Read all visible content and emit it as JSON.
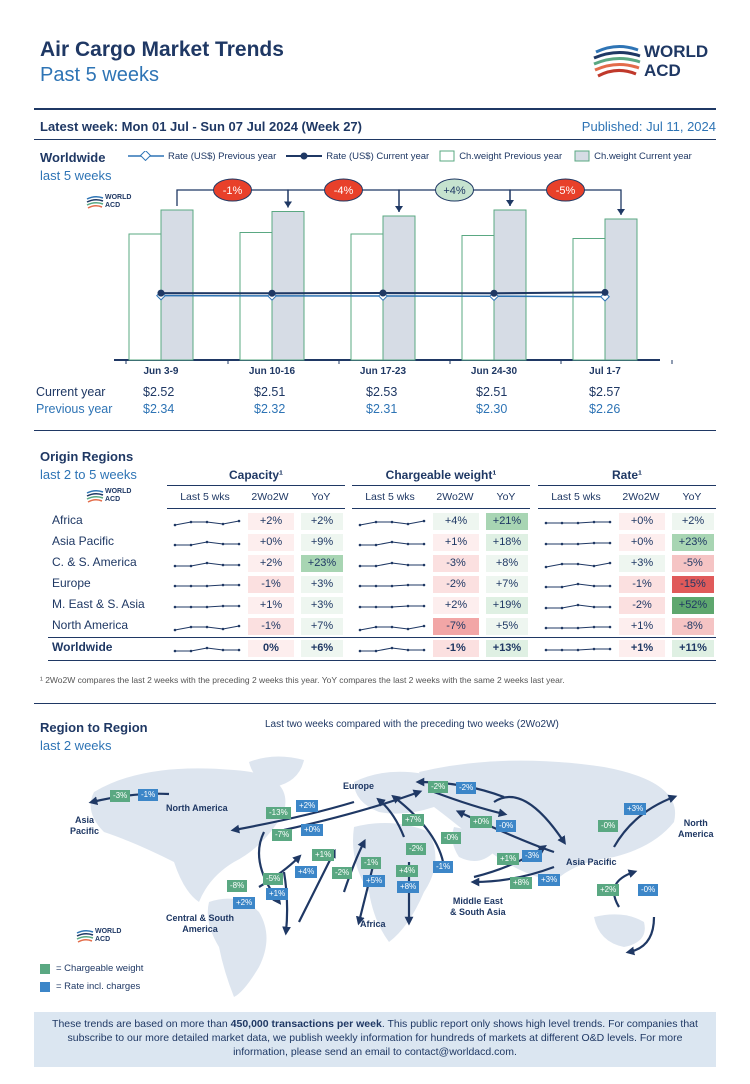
{
  "header": {
    "title": "Air Cargo Market Trends",
    "subtitle": "Past 5 weeks",
    "logo_line1": "WORLD",
    "logo_line2": "ACD",
    "latest_week": "Latest week:  Mon 01 Jul - Sun 07 Jul 2024 (Week 27)",
    "published": "Published: Jul 11, 2024"
  },
  "worldwide": {
    "title": "Worldwide",
    "sub": "last 5 weeks",
    "legend": [
      "Rate (US$) Previous year",
      "Rate (US$) Current year",
      "Ch.weight Previous year",
      "Ch.weight Current year"
    ],
    "changes": [
      "-1%",
      "-4%",
      "+4%",
      "-5%"
    ],
    "row_current_label": "Current year",
    "row_previous_label": "Previous year"
  },
  "chart_data": {
    "type": "bar",
    "categories": [
      "Jun 3-9",
      "Jun 10-16",
      "Jun 17-23",
      "Jun 24-30",
      "Jul 1-7"
    ],
    "series": [
      {
        "name": "Ch.weight Previous year",
        "values": [
          0.84,
          0.85,
          0.84,
          0.83,
          0.81
        ]
      },
      {
        "name": "Ch.weight Current year",
        "values": [
          1.0,
          0.99,
          0.96,
          1.0,
          0.94
        ]
      },
      {
        "name": "Rate (US$) Current year",
        "values": [
          2.52,
          2.51,
          2.53,
          2.51,
          2.57
        ]
      },
      {
        "name": "Rate (US$) Previous year",
        "values": [
          2.34,
          2.32,
          2.31,
          2.3,
          2.26
        ]
      }
    ],
    "current_labels": [
      "$2.52",
      "$2.51",
      "$2.53",
      "$2.51",
      "$2.57"
    ],
    "previous_labels": [
      "$2.34",
      "$2.32",
      "$2.31",
      "$2.30",
      "$2.26"
    ]
  },
  "origin": {
    "title": "Origin Regions",
    "sub": "last 2 to 5 weeks",
    "group_headers": [
      "Capacity¹",
      "Chargeable weight¹",
      "Rate¹"
    ],
    "sub_headers": [
      "Last 5 wks",
      "2Wo2W",
      "YoY"
    ],
    "rows": [
      {
        "name": "Africa",
        "cap": [
          "+2%",
          "+2%"
        ],
        "cw": [
          "+4%",
          "+21%"
        ],
        "rate": [
          "+0%",
          "+2%"
        ]
      },
      {
        "name": "Asia Pacific",
        "cap": [
          "+0%",
          "+9%"
        ],
        "cw": [
          "+1%",
          "+18%"
        ],
        "rate": [
          "+0%",
          "+23%"
        ]
      },
      {
        "name": "C. & S. America",
        "cap": [
          "+2%",
          "+23%"
        ],
        "cw": [
          "-3%",
          "+8%"
        ],
        "rate": [
          "+3%",
          "-5%"
        ]
      },
      {
        "name": "Europe",
        "cap": [
          "-1%",
          "+3%"
        ],
        "cw": [
          "-2%",
          "+7%"
        ],
        "rate": [
          "-1%",
          "-15%"
        ]
      },
      {
        "name": "M. East & S. Asia",
        "cap": [
          "+1%",
          "+3%"
        ],
        "cw": [
          "+2%",
          "+19%"
        ],
        "rate": [
          "-2%",
          "+52%"
        ]
      },
      {
        "name": "North America",
        "cap": [
          "-1%",
          "+7%"
        ],
        "cw": [
          "-7%",
          "+5%"
        ],
        "rate": [
          "+1%",
          "-8%"
        ]
      },
      {
        "name": "Worldwide",
        "cap": [
          "0%",
          "+6%"
        ],
        "cw": [
          "-1%",
          "+13%"
        ],
        "rate": [
          "+1%",
          "+11%"
        ]
      }
    ],
    "footnote": "¹ 2Wo2W compares the last 2 weeks with the preceding 2 weeks this year. YoY compares the last 2 weeks with the same 2 weeks last year."
  },
  "r2r": {
    "title": "Region to Region",
    "sub": "last 2 weeks",
    "caption": "Last two weeks compared with the preceding two weeks (2Wo2W)",
    "labels": {
      "asia_pacific_left": "Asia\nPacific",
      "north_america": "North America",
      "europe": "Europe",
      "north_america_right": "North\nAmerica",
      "asia_pacific": "Asia Pacific",
      "mesa": "Middle East\n& South Asia",
      "csa": "Central & South\nAmerica",
      "africa": "Africa"
    },
    "legend_green": "= Chargeable weight",
    "legend_blue": "= Rate incl. charges",
    "badges": [
      "-3%",
      "-1%",
      "+2%",
      "-13%",
      "+0%",
      "-7%",
      "-2%",
      "-2%",
      "+7%",
      "+0%",
      "-0%",
      "-0%",
      "+3%",
      "-0%",
      "-2%",
      "+1%",
      "+4%",
      "-2%",
      "-1%",
      "+1%",
      "-3%",
      "+4%",
      "-1%",
      "+5%",
      "+8%",
      "+8%",
      "+3%",
      "-8%",
      "+2%",
      "-5%",
      "+1%",
      "+2%",
      "-0%"
    ]
  },
  "footer": {
    "line1a": "These trends are based on more than ",
    "line1b": "450,000 transactions per week",
    "line1c": ". This public report only shows high level trends. For companies that subscribe to our more detailed market data, we publish weekly information for hundreds of markets at different O&D levels. For more information, please send an email to ",
    "email": "contact@worldacd.com",
    "end": "."
  }
}
